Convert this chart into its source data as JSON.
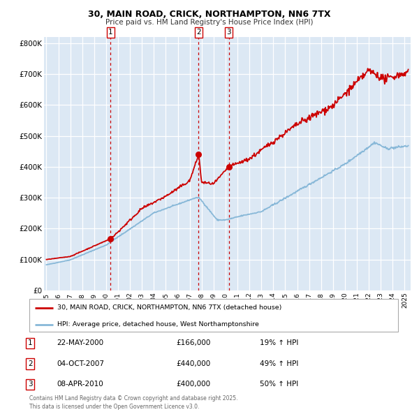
{
  "title": "30, MAIN ROAD, CRICK, NORTHAMPTON, NN6 7TX",
  "subtitle": "Price paid vs. HM Land Registry's House Price Index (HPI)",
  "legend_line1": "30, MAIN ROAD, CRICK, NORTHAMPTON, NN6 7TX (detached house)",
  "legend_line2": "HPI: Average price, detached house, West Northamptonshire",
  "footer": "Contains HM Land Registry data © Crown copyright and database right 2025.\nThis data is licensed under the Open Government Licence v3.0.",
  "sale_color": "#cc0000",
  "hpi_color": "#88b8d8",
  "plot_bg_color": "#dce8f4",
  "vline_color": "#cc0000",
  "marker_color": "#cc0000",
  "annotations": [
    {
      "num": 1,
      "date": "22-MAY-2000",
      "price": 166000,
      "pct": "19% ↑ HPI",
      "x_year": 2000.38
    },
    {
      "num": 2,
      "date": "04-OCT-2007",
      "price": 440000,
      "pct": "49% ↑ HPI",
      "x_year": 2007.75
    },
    {
      "num": 3,
      "date": "08-APR-2010",
      "price": 400000,
      "pct": "50% ↑ HPI",
      "x_year": 2010.27
    }
  ],
  "ylim": [
    0,
    820000
  ],
  "xlim_start": 1994.8,
  "xlim_end": 2025.5,
  "yticks": [
    0,
    100000,
    200000,
    300000,
    400000,
    500000,
    600000,
    700000,
    800000
  ],
  "ytick_labels": [
    "£0",
    "£100K",
    "£200K",
    "£300K",
    "£400K",
    "£500K",
    "£600K",
    "£700K",
    "£800K"
  ],
  "xticks": [
    1995,
    1996,
    1997,
    1998,
    1999,
    2000,
    2001,
    2002,
    2003,
    2004,
    2005,
    2006,
    2007,
    2008,
    2009,
    2010,
    2011,
    2012,
    2013,
    2014,
    2015,
    2016,
    2017,
    2018,
    2019,
    2020,
    2021,
    2022,
    2023,
    2024,
    2025
  ]
}
